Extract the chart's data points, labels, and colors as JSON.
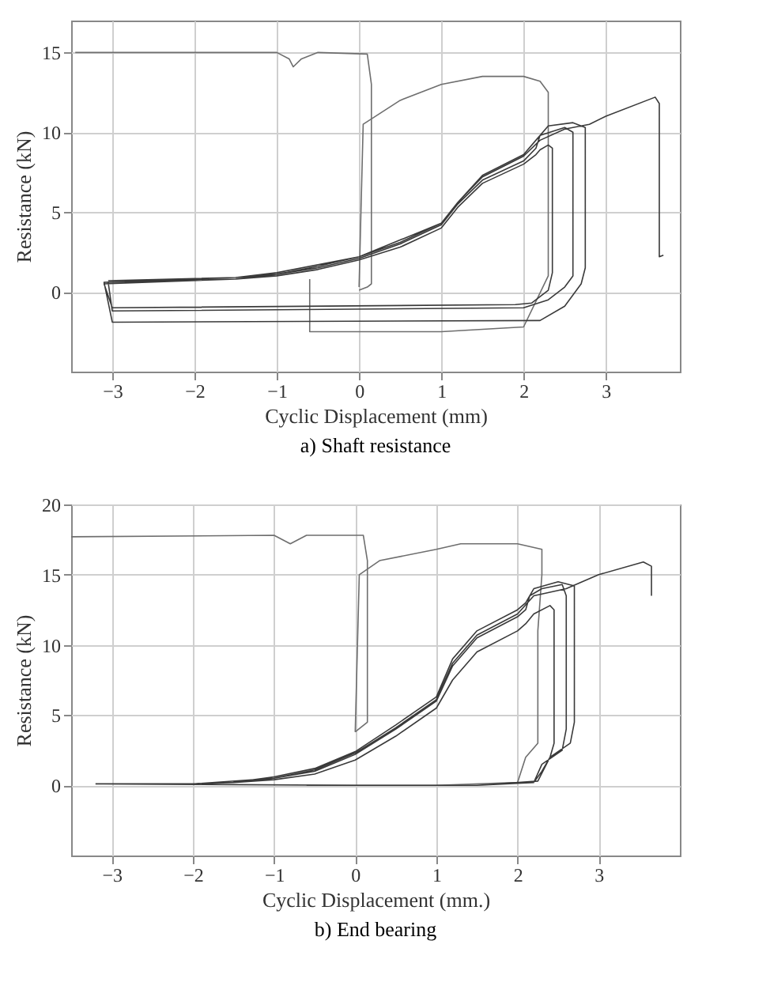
{
  "chart_data": [
    {
      "type": "line",
      "title": "a) Shaft resistance",
      "xlabel": "Cyclic Displacement (mm)",
      "ylabel": "Resistance (kN)",
      "xlim": [
        -3.5,
        3.9
      ],
      "xticks": [
        -3,
        -2,
        -1,
        0,
        1,
        2,
        3
      ],
      "ylim": [
        -5,
        17
      ],
      "yticks": [
        0,
        5,
        10,
        15
      ],
      "grid": true,
      "series": [
        {
          "color": "#6e6e6e",
          "x": [
            -3.45,
            -1.0,
            -0.85,
            -0.8,
            -0.7,
            -0.5,
            0.1,
            0.15,
            0.15,
            0.1,
            0.0
          ],
          "values": [
            15,
            15,
            14.6,
            14.1,
            14.6,
            15,
            14.9,
            13,
            0.5,
            0.3,
            0.1
          ]
        },
        {
          "color": "#6e6e6e",
          "x": [
            0.0,
            0.05,
            0.5,
            1.0,
            1.5,
            2.0,
            2.2,
            2.3,
            2.3,
            2.3,
            2.0,
            1.0,
            -0.6,
            -0.6
          ],
          "values": [
            0.3,
            10.5,
            12,
            13,
            13.5,
            13.5,
            13.2,
            12.5,
            10,
            1,
            -2.2,
            -2.5,
            -2.5,
            0.8
          ]
        },
        {
          "color": "#3a3a3a",
          "x": [
            -3.05,
            -1.5,
            -1.0,
            -0.5,
            0.0,
            0.5,
            1.0,
            1.2,
            1.5,
            2.0,
            2.15,
            2.2,
            2.5,
            2.6,
            2.6,
            2.5,
            2.3,
            2.0,
            -3.0,
            -3.05,
            -1.5,
            -1.0,
            -0.5,
            0.0,
            0.5,
            1.0,
            1.2,
            1.5,
            2.0,
            2.15,
            2.2,
            2.3,
            2.35,
            2.35,
            2.3,
            2.1,
            1.9,
            -3.0,
            -3.1,
            -1.5,
            -1.0,
            -0.5,
            0.0,
            0.5,
            1.0,
            1.2,
            1.5,
            2.0,
            2.15,
            2.3,
            2.6,
            2.75,
            2.75,
            2.7,
            2.5,
            2.2,
            -3.0,
            -3.1,
            -1.5,
            -1.0,
            0.0,
            1.0,
            1.2,
            1.5,
            2.0,
            2.2,
            2.5,
            2.8,
            3.0,
            3.6,
            3.65,
            3.65,
            3.7
          ],
          "values": [
            0.7,
            0.9,
            1.1,
            1.5,
            2.1,
            3,
            4.2,
            5.5,
            7,
            8.2,
            9,
            9.8,
            10.3,
            10,
            1,
            0.3,
            -0.5,
            -1,
            -1.2,
            0.6,
            0.8,
            1.0,
            1.4,
            2.0,
            2.8,
            4.0,
            5.3,
            6.8,
            8.0,
            8.6,
            8.9,
            9.2,
            9.0,
            1.2,
            0.1,
            -0.7,
            -0.8,
            -1.0,
            0.5,
            0.8,
            1.1,
            1.6,
            2.2,
            3.1,
            4.3,
            5.6,
            7.3,
            8.6,
            9.5,
            10.4,
            10.6,
            10.3,
            1.5,
            0.5,
            -0.9,
            -1.8,
            -1.9,
            0.6,
            0.9,
            1.2,
            2.2,
            4.3,
            5.6,
            7.2,
            8.5,
            9.5,
            10.2,
            10.5,
            11,
            12.2,
            11.8,
            2.2,
            2.3
          ]
        }
      ]
    },
    {
      "type": "line",
      "title": "b) End bearing",
      "xlabel": "Cyclic Displacement (mm.)",
      "ylabel": "Resistance (kN)",
      "xlim": [
        -3.5,
        4.0
      ],
      "xticks": [
        -3,
        -2,
        -1,
        0,
        1,
        2,
        3
      ],
      "ylim": [
        -5,
        20
      ],
      "yticks": [
        0,
        5,
        10,
        15,
        20
      ],
      "grid": true,
      "series": [
        {
          "color": "#6e6e6e",
          "x": [
            -3.5,
            -1.0,
            -0.8,
            -0.6,
            0.1,
            0.15,
            0.15,
            0.0
          ],
          "values": [
            17.7,
            17.8,
            17.2,
            17.8,
            17.8,
            16,
            4.5,
            3.8
          ]
        },
        {
          "color": "#6e6e6e",
          "x": [
            0.0,
            0.05,
            0.3,
            1.0,
            1.3,
            2.0,
            2.3,
            2.3,
            2.25,
            2.25,
            2.1,
            2.0,
            1.0,
            -0.6
          ],
          "values": [
            3.8,
            15,
            16,
            16.8,
            17.2,
            17.2,
            16.8,
            15,
            11,
            3,
            2,
            0.2,
            0,
            0
          ]
        },
        {
          "color": "#3a3a3a",
          "x": [
            -3.2,
            -2.0,
            -1.5,
            -1.0,
            -0.5,
            0.0,
            0.5,
            1.0,
            1.2,
            1.5,
            2.0,
            2.1,
            2.15,
            2.3,
            2.55,
            2.6,
            2.6,
            2.55,
            2.3,
            2.2,
            1.5,
            0.0,
            -3.1,
            -2.0,
            -1.5,
            -1.0,
            -0.5,
            0.0,
            0.5,
            1.0,
            1.2,
            1.5,
            2.0,
            2.1,
            2.2,
            2.4,
            2.45,
            2.45,
            2.4,
            2.3,
            2.2,
            1.5,
            0.0,
            -3.1,
            -2.0,
            -1.5,
            -1.0,
            -0.5,
            0.0,
            0.5,
            1.0,
            1.2,
            1.5,
            2.0,
            2.1,
            2.2,
            2.5,
            2.7,
            2.7,
            2.65,
            2.4,
            2.25,
            1.5,
            0.0,
            -3.1,
            -2.0,
            -1.0,
            -0.5,
            0.0,
            0.5,
            1.0,
            1.2,
            1.5,
            2.0,
            2.2,
            2.6,
            3.0,
            3.55,
            3.65,
            3.65
          ],
          "values": [
            0.1,
            0.1,
            0.2,
            0.5,
            1.0,
            2.2,
            4,
            6,
            8.5,
            10.5,
            12,
            12.5,
            13.5,
            14,
            14.3,
            13.5,
            4,
            2.5,
            1.5,
            0.2,
            0,
            0,
            0.1,
            0.1,
            0.2,
            0.4,
            0.8,
            1.8,
            3.5,
            5.5,
            7.5,
            9.5,
            11,
            11.5,
            12.2,
            12.8,
            12.5,
            3,
            2,
            1,
            0.2,
            0,
            0,
            0.1,
            0.1,
            0.2,
            0.6,
            1.2,
            2.4,
            4.3,
            6.3,
            9.0,
            11,
            12.5,
            13,
            14,
            14.5,
            14.2,
            4.5,
            3,
            2,
            0.3,
            0,
            0,
            0.1,
            0.1,
            0.5,
            1.1,
            2.3,
            4.1,
            6.1,
            8.7,
            10.7,
            12.2,
            13.5,
            14,
            15,
            15.9,
            15.6,
            13.5
          ]
        }
      ]
    }
  ]
}
